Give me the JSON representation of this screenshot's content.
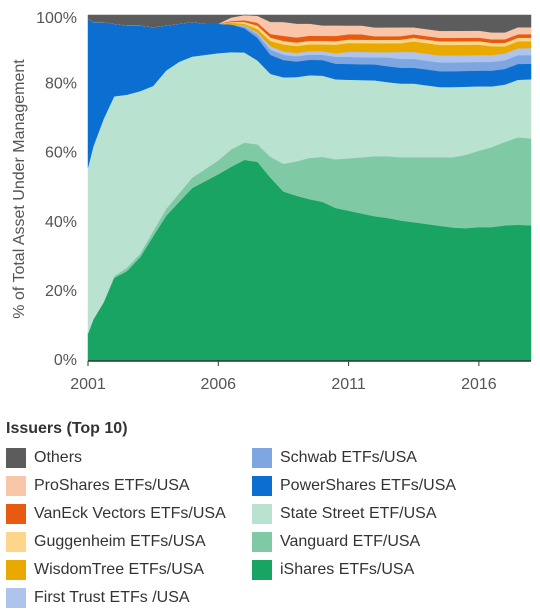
{
  "chart_data": {
    "type": "area",
    "stacked": "percent",
    "title": "",
    "xlabel": "",
    "ylabel": "% of Total Asset Under Management",
    "x_range": [
      2001,
      2018
    ],
    "ylim": [
      0,
      100
    ],
    "yticks": [
      "0%",
      "20%",
      "40%",
      "60%",
      "80%",
      "100%"
    ],
    "xticks": [
      "2001",
      "2006",
      "2011",
      "2016"
    ],
    "grid": false,
    "legend_title": "Issuers (Top 10)",
    "legend_position": "bottom",
    "x": [
      2000.9,
      2001.2,
      2001.6,
      2002,
      2002.5,
      2003,
      2003.5,
      2004,
      2004.5,
      2005,
      2005.5,
      2006,
      2006.5,
      2007,
      2007.5,
      2008,
      2008.5,
      2009,
      2009.5,
      2010,
      2010.5,
      2011,
      2011.5,
      2012,
      2012.5,
      2013,
      2013.5,
      2014,
      2014.5,
      2015,
      2015.5,
      2016,
      2016.5,
      2017,
      2017.5,
      2018
    ],
    "series": [
      {
        "name": "iShares ETFs/USA",
        "color": "#19A463",
        "values": [
          8,
          12,
          17,
          24,
          26,
          30,
          36,
          42,
          46,
          50,
          52,
          54,
          56,
          58,
          57,
          53,
          49,
          48,
          47,
          46,
          44,
          43,
          42,
          41,
          40.5,
          40,
          39.5,
          39,
          38.5,
          38,
          38,
          38.5,
          38.5,
          39,
          39,
          39
        ]
      },
      {
        "name": "Vanguard ETF/USA",
        "color": "#7FCAA5",
        "values": [
          0,
          0,
          0,
          0.5,
          1,
          1,
          1.5,
          2,
          2.5,
          3,
          3.5,
          4,
          5,
          5,
          5,
          6,
          8,
          10,
          12,
          13,
          14,
          15,
          16,
          17,
          17.5,
          18,
          18.5,
          19,
          19.5,
          20,
          21,
          22,
          23,
          24,
          25,
          25
        ]
      },
      {
        "name": "State Street ETF/USA",
        "color": "#B9E2D1",
        "values": [
          48,
          50,
          53,
          52,
          50,
          47,
          42,
          40,
          38,
          35,
          33,
          31,
          28,
          26,
          24,
          24,
          25,
          24.5,
          24,
          23.5,
          23,
          22.5,
          22,
          21.5,
          21,
          21,
          21,
          20.5,
          20,
          20,
          19.5,
          18.5,
          17.5,
          16.5,
          16.5,
          17
        ]
      },
      {
        "name": "PowerShares ETFs/USA",
        "color": "#0A6FD1",
        "values": [
          43,
          36,
          28,
          21,
          20,
          19,
          17,
          13,
          11,
          10,
          9,
          8.5,
          8,
          7,
          6.5,
          5.5,
          5,
          4.5,
          4.5,
          4.5,
          4.5,
          4.5,
          4.5,
          4.5,
          4.5,
          4.5,
          4.5,
          4.5,
          4.5,
          4.5,
          4.5,
          4.5,
          4.5,
          4.5,
          4.5,
          4.5
        ]
      },
      {
        "name": "Schwab ETFs/USA",
        "color": "#7EA6E0",
        "values": [
          0,
          0,
          0,
          0,
          0,
          0,
          0,
          0,
          0,
          0,
          0,
          0,
          0,
          0.5,
          1,
          1.5,
          1.5,
          1.5,
          1.5,
          1.5,
          2,
          2,
          2,
          2,
          2.5,
          2.5,
          2.5,
          2.5,
          2.5,
          2.5,
          2.5,
          2.5,
          2.5,
          2.5,
          2.5,
          2.5
        ]
      },
      {
        "name": "First Trust ETFs /USA",
        "color": "#AEC4EC",
        "values": [
          0,
          0,
          0,
          0,
          0,
          0,
          0,
          0,
          0,
          0,
          0,
          0,
          0,
          0.3,
          0.5,
          1,
          1,
          1,
          1,
          1,
          1,
          1.5,
          1.5,
          1.5,
          1.5,
          2,
          2,
          2,
          2,
          2,
          2,
          2,
          2,
          2,
          2,
          2
        ]
      },
      {
        "name": "WisdomTree ETFs/USA",
        "color": "#EAA900",
        "values": [
          0,
          0,
          0,
          0,
          0,
          0,
          0,
          0,
          0,
          0,
          0,
          0,
          0.5,
          0.5,
          1,
          1.5,
          2,
          2,
          2,
          2,
          2.5,
          2.5,
          2.5,
          2.5,
          2.5,
          2.5,
          3,
          3,
          3,
          3,
          3,
          3,
          2.5,
          2,
          2,
          2
        ]
      },
      {
        "name": "Guggenheim ETFs/USA",
        "color": "#FDD68A",
        "values": [
          0,
          0,
          0,
          0,
          0,
          0,
          0,
          0,
          0,
          0,
          0,
          0,
          0.2,
          0.5,
          1,
          1,
          1,
          1,
          1,
          1,
          1,
          1,
          1,
          1,
          1,
          1,
          1,
          1,
          1,
          1,
          1,
          1,
          1,
          1,
          1,
          1
        ]
      },
      {
        "name": "VanEck Vectors ETFs/USA",
        "color": "#E85A10",
        "values": [
          0,
          0,
          0,
          0,
          0,
          0,
          0,
          0,
          0,
          0,
          0,
          0,
          0.3,
          0.5,
          0.8,
          1,
          1.5,
          1.5,
          1.5,
          1.5,
          1.5,
          1.5,
          1.5,
          1,
          1,
          1,
          1,
          1,
          1,
          1,
          1,
          1,
          1,
          1,
          1,
          1
        ]
      },
      {
        "name": "ProShares ETFs/USA",
        "color": "#F9C6A9",
        "values": [
          0,
          0,
          0,
          0,
          0,
          0,
          0,
          0,
          0,
          0,
          0,
          0,
          1,
          1.5,
          2,
          3.5,
          4,
          4,
          3.5,
          3,
          3,
          2.5,
          2.5,
          2.5,
          2.5,
          2.5,
          2,
          2,
          2,
          2,
          2,
          2,
          2,
          2,
          2,
          2
        ]
      },
      {
        "name": "Others",
        "color": "#5C5C5C",
        "values": [
          1,
          2,
          2,
          2.5,
          3,
          3,
          3.5,
          3,
          2.5,
          2,
          2.5,
          2.5,
          0.7,
          0,
          0.2,
          2,
          2,
          2.5,
          2.5,
          3,
          3,
          3,
          3,
          3.5,
          3.5,
          3.5,
          3.5,
          4,
          4.5,
          4.5,
          4.5,
          4.5,
          5,
          5,
          3.5,
          3.5
        ]
      }
    ],
    "legend_left": [
      "Others",
      "ProShares ETFs/USA",
      "VanEck Vectors ETFs/USA",
      "Guggenheim ETFs/USA",
      "WisdomTree ETFs/USA",
      "First Trust ETFs /USA"
    ],
    "legend_right": [
      "Schwab ETFs/USA",
      "PowerShares ETFs/USA",
      "State Street ETF/USA",
      "Vanguard ETF/USA",
      "iShares ETFs/USA"
    ]
  }
}
